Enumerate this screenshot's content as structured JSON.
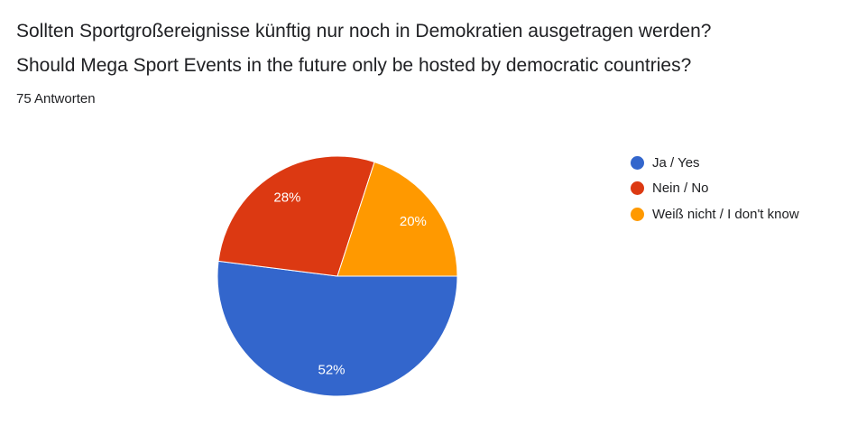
{
  "header": {
    "title_line_1": "Sollten Sportgroßereignisse künftig nur noch in Demokratien ausgetragen werden?",
    "title_line_2": "Should Mega Sport Events in the future only be hosted by democratic countries?",
    "responses": "75 Antworten"
  },
  "chart_data": {
    "type": "pie",
    "title": "",
    "categories": [
      "Ja / Yes",
      "Nein / No",
      "Weiß nicht / I don't know"
    ],
    "values": [
      52,
      28,
      20
    ],
    "labels": [
      "52%",
      "28%",
      "20%"
    ],
    "colors": [
      "#3366cc",
      "#dc3912",
      "#ff9900"
    ],
    "legend_position": "right"
  }
}
